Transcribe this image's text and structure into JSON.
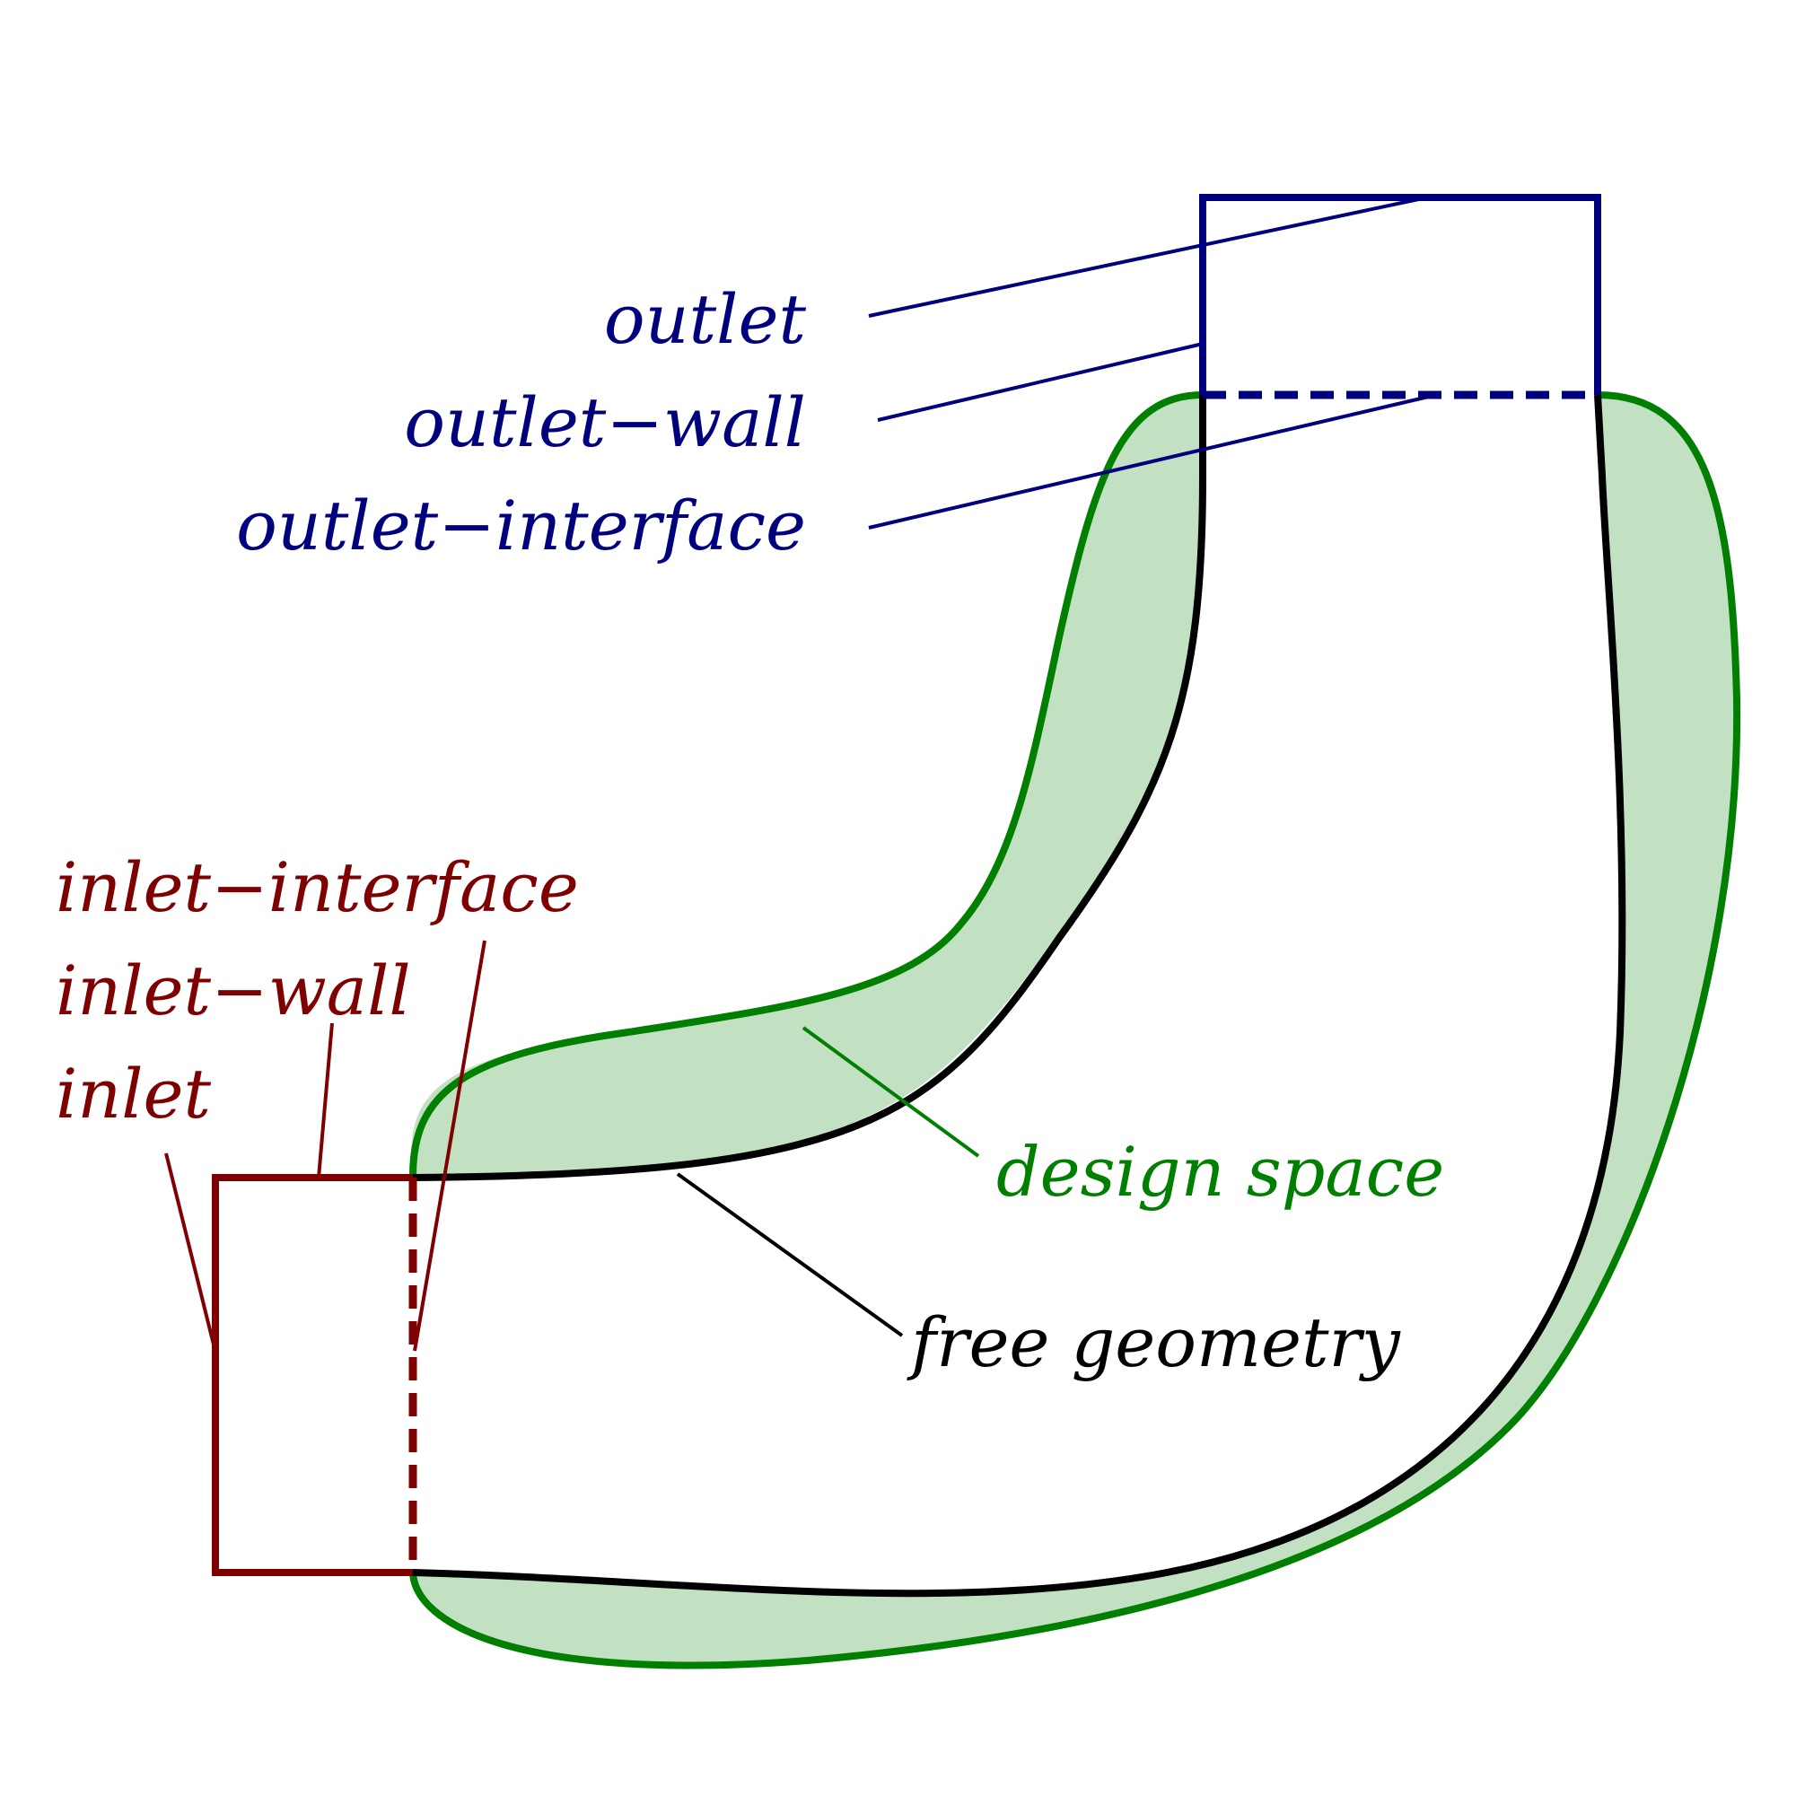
{
  "colors": {
    "outlet": "#00007f",
    "inlet": "#7f0000",
    "design_space_stroke": "#007f00",
    "design_space_fill": "#c2e0c2",
    "free_geometry": "#000000"
  },
  "labels": {
    "outlet": "outlet",
    "outlet_wall": "outlet−wall",
    "outlet_interface": "outlet−interface",
    "inlet_interface": "inlet−interface",
    "inlet_wall": "inlet−wall",
    "inlet": "inlet",
    "design_space": "design space",
    "free_geometry": "free geometry"
  }
}
